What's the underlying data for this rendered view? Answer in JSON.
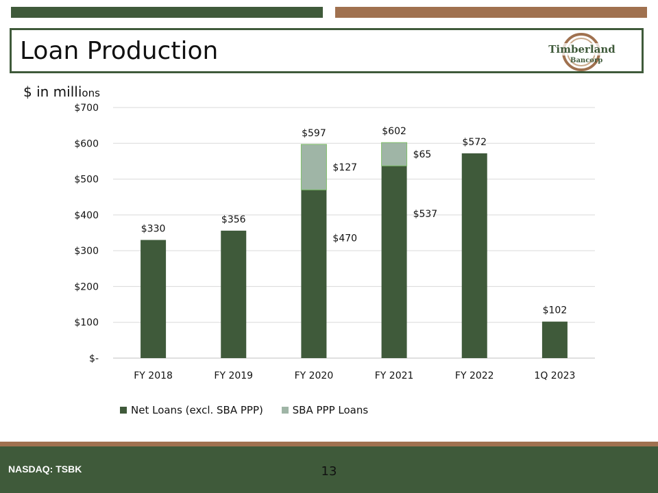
{
  "header": {
    "title": "Loan Production",
    "logo_name": "Timberland",
    "logo_sub": "Bancorp"
  },
  "units_label_main": "$ in milli",
  "units_label_small": "ons",
  "colors": {
    "dark_green": "#3f5a3a",
    "light_green": "#9fb5a6",
    "brown": "#a0714f"
  },
  "chart_data": {
    "type": "bar",
    "stacked": true,
    "title": "Loan Production",
    "ylabel": "$ in millions",
    "xlabel": "",
    "categories": [
      "FY 2018",
      "FY 2019",
      "FY 2020",
      "FY 2021",
      "FY 2022",
      "1Q 2023"
    ],
    "series": [
      {
        "name": "Net Loans (excl. SBA PPP)",
        "values": [
          330,
          356,
          470,
          537,
          572,
          102
        ],
        "color": "#3f5a3a"
      },
      {
        "name": "SBA PPP Loans",
        "values": [
          0,
          0,
          127,
          65,
          0,
          0
        ],
        "color": "#9fb5a6"
      }
    ],
    "totals": [
      330,
      356,
      597,
      602,
      572,
      102
    ],
    "total_labels": [
      "$330",
      "$356",
      "$597",
      "$602",
      "$572",
      "$102"
    ],
    "segment_labels": [
      {
        "category": "FY 2020",
        "series": "Net Loans (excl. SBA PPP)",
        "text": "$470",
        "value": 470
      },
      {
        "category": "FY 2020",
        "series": "SBA PPP Loans",
        "text": "$127",
        "value": 127
      },
      {
        "category": "FY 2021",
        "series": "Net Loans (excl. SBA PPP)",
        "text": "$537",
        "value": 537
      },
      {
        "category": "FY 2021",
        "series": "SBA PPP Loans",
        "text": "$65",
        "value": 65
      }
    ],
    "ylim": [
      0,
      700
    ],
    "yticks": [
      0,
      100,
      200,
      300,
      400,
      500,
      600,
      700
    ],
    "ytick_labels": [
      "$-",
      "$100",
      "$200",
      "$300",
      "$400",
      "$500",
      "$600",
      "$700"
    ],
    "grid": true,
    "legend_position": "bottom"
  },
  "footer": {
    "ticker": "NASDAQ: TSBK",
    "page_number": "13"
  }
}
